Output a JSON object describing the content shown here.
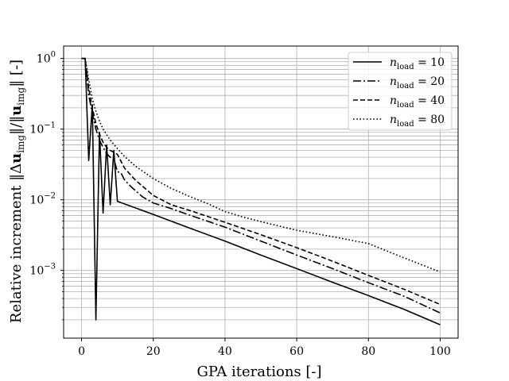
{
  "chart_data": {
    "type": "line",
    "xlabel": "GPA iterations [-]",
    "ylabel": "Relative increment ‖Δu_img‖/‖u_img‖ [-]",
    "ylabel_parts": {
      "prefix": "Relative increment ‖",
      "delta": "Δ",
      "u1": "u",
      "sub1": "img",
      "mid": "‖/‖",
      "u2": "u",
      "sub2": "img",
      "suffix": "‖ [-]"
    },
    "xlim": [
      -5,
      105
    ],
    "ylim": [
      0.00011,
      1.5
    ],
    "yscale": "log",
    "grid": "major and minor",
    "legend_position": "top-right",
    "x_ticks": [
      0,
      20,
      40,
      60,
      80,
      100
    ],
    "x_tick_labels": [
      "0",
      "20",
      "40",
      "60",
      "80",
      "100"
    ],
    "y_ticks": [
      0.001,
      0.01,
      0.1,
      1
    ],
    "y_tick_bases": [
      "10",
      "10",
      "10",
      "10"
    ],
    "y_tick_exps": [
      "−3",
      "−2",
      "−1",
      "0"
    ],
    "series": [
      {
        "name": "n_load = 10",
        "legend_base": "n",
        "legend_sub": "load",
        "legend_value": " = 10",
        "dash": "solid",
        "points": [
          [
            0,
            1
          ],
          [
            1,
            1
          ],
          [
            2,
            0.036
          ],
          [
            3,
            0.22
          ],
          [
            4,
            0.0002
          ],
          [
            5,
            0.09
          ],
          [
            6,
            0.0065
          ],
          [
            7,
            0.06
          ],
          [
            8,
            0.0085
          ],
          [
            9,
            0.05
          ],
          [
            10,
            0.0095
          ],
          [
            20,
            0.0062
          ],
          [
            30,
            0.004
          ],
          [
            40,
            0.0026
          ],
          [
            50,
            0.00165
          ],
          [
            60,
            0.00106
          ],
          [
            70,
            0.00068
          ],
          [
            80,
            0.00044
          ],
          [
            90,
            0.00028
          ],
          [
            100,
            0.00017
          ]
        ]
      },
      {
        "name": "n_load = 20",
        "legend_base": "n",
        "legend_sub": "load",
        "legend_value": " = 20",
        "dash": "dashdot",
        "points": [
          [
            0,
            1
          ],
          [
            1,
            1
          ],
          [
            2,
            0.3
          ],
          [
            3,
            0.17
          ],
          [
            4,
            0.1
          ],
          [
            5,
            0.07
          ],
          [
            6,
            0.055
          ],
          [
            7,
            0.045
          ],
          [
            8,
            0.04
          ],
          [
            9,
            0.038
          ],
          [
            10,
            0.025
          ],
          [
            11,
            0.024
          ],
          [
            12,
            0.019
          ],
          [
            14,
            0.015
          ],
          [
            17,
            0.011
          ],
          [
            20,
            0.009
          ],
          [
            25,
            0.0075
          ],
          [
            30,
            0.0061
          ],
          [
            40,
            0.0041
          ],
          [
            50,
            0.0026
          ],
          [
            60,
            0.00165
          ],
          [
            70,
            0.00106
          ],
          [
            80,
            0.00067
          ],
          [
            90,
            0.00043
          ],
          [
            100,
            0.00025
          ]
        ]
      },
      {
        "name": "n_load = 40",
        "legend_base": "n",
        "legend_sub": "load",
        "legend_value": " = 40",
        "dash": "dashed",
        "points": [
          [
            0,
            1
          ],
          [
            1,
            1
          ],
          [
            2,
            0.38
          ],
          [
            3,
            0.2
          ],
          [
            4,
            0.12
          ],
          [
            5,
            0.085
          ],
          [
            6,
            0.065
          ],
          [
            7,
            0.055
          ],
          [
            8,
            0.05
          ],
          [
            9,
            0.047
          ],
          [
            10,
            0.044
          ],
          [
            12,
            0.028
          ],
          [
            15,
            0.019
          ],
          [
            20,
            0.0115
          ],
          [
            25,
            0.0085
          ],
          [
            30,
            0.0071
          ],
          [
            40,
            0.0048
          ],
          [
            50,
            0.0032
          ],
          [
            60,
            0.0021
          ],
          [
            70,
            0.00135
          ],
          [
            80,
            0.00085
          ],
          [
            90,
            0.00054
          ],
          [
            100,
            0.00033
          ]
        ]
      },
      {
        "name": "n_load = 80",
        "legend_base": "n",
        "legend_sub": "load",
        "legend_value": " = 80",
        "dash": "dotted",
        "points": [
          [
            0,
            1
          ],
          [
            1,
            1
          ],
          [
            2,
            0.5
          ],
          [
            3,
            0.27
          ],
          [
            4,
            0.18
          ],
          [
            5,
            0.13
          ],
          [
            6,
            0.1
          ],
          [
            8,
            0.07
          ],
          [
            10,
            0.053
          ],
          [
            12,
            0.041
          ],
          [
            15,
            0.03
          ],
          [
            20,
            0.02
          ],
          [
            25,
            0.0145
          ],
          [
            30,
            0.0112
          ],
          [
            35,
            0.0089
          ],
          [
            40,
            0.0068
          ],
          [
            45,
            0.0057
          ],
          [
            50,
            0.0049
          ],
          [
            60,
            0.0037
          ],
          [
            70,
            0.003
          ],
          [
            80,
            0.0024
          ],
          [
            90,
            0.0015
          ],
          [
            100,
            0.00095
          ]
        ]
      }
    ]
  }
}
